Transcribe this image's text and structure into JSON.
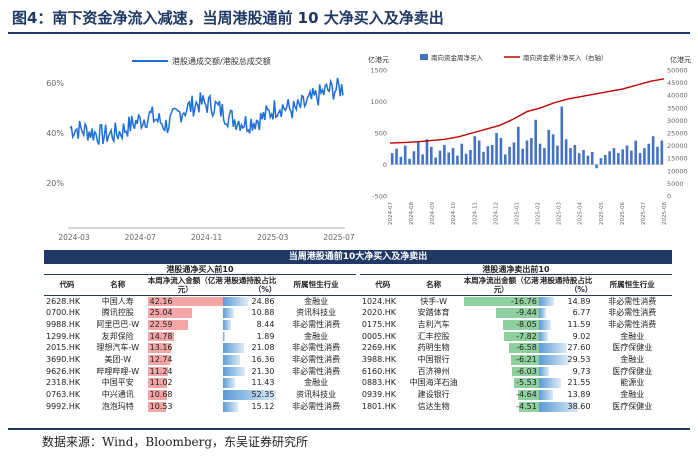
{
  "figure_title": "图4：南下资金净流入减速，当周港股通前 10 大净买入及净卖出",
  "source": "数据来源：Wind，Bloomberg，东吴证券研究所",
  "colors": {
    "navy": "#1f3864",
    "blue_line": "#1f6fd6",
    "bar_blue": "#4472c4",
    "red_line": "#c00000",
    "buy_bar": "#f4a6a6",
    "sell_bar": "#8fd19e",
    "hold_bar": "#5b9bd5"
  },
  "chart_data": [
    {
      "type": "line",
      "legend": [
        "港股通成交额/港股总成交额"
      ],
      "legend_position": "top",
      "x_ticks": [
        "2024-03",
        "2024-07",
        "2024-11",
        "2025-03",
        "2025-07"
      ],
      "y_ticks": [
        "20%",
        "40%",
        "60%"
      ],
      "ylim": [
        0.02,
        0.66
      ],
      "grid": "none",
      "series": [
        {
          "name": "港股通成交额/港股总成交额",
          "x": [
            "2024-03",
            "2024-04",
            "2024-05",
            "2024-06",
            "2024-07",
            "2024-08",
            "2024-09",
            "2024-10",
            "2024-11",
            "2024-12",
            "2025-01",
            "2025-02",
            "2025-03",
            "2025-04",
            "2025-05",
            "2025-06",
            "2025-07",
            "2025-08"
          ],
          "values": [
            0.42,
            0.41,
            0.39,
            0.4,
            0.44,
            0.47,
            0.43,
            0.49,
            0.52,
            0.51,
            0.46,
            0.44,
            0.46,
            0.51,
            0.49,
            0.53,
            0.57,
            0.58
          ]
        }
      ]
    },
    {
      "type": "bar",
      "legend": [
        "南向资金周净买入",
        "南向资金累计净买入（右轴）"
      ],
      "legend_position": "top",
      "left_axis_title": "亿港元",
      "right_axis_title": "亿港元",
      "left_ticks": [
        "-500",
        "0",
        "500",
        "1000",
        "1500"
      ],
      "right_ticks": [
        "0",
        "5000",
        "10000",
        "15000",
        "20000",
        "25000",
        "30000",
        "35000",
        "40000",
        "45000",
        "50000"
      ],
      "ylim_left": [
        -500,
        1500
      ],
      "ylim_right": [
        0,
        50000
      ],
      "x_ticks": [
        "2024-07",
        "2024-08",
        "2024-09",
        "2024-10",
        "2024-11",
        "2024-12",
        "2025-01",
        "2025-02",
        "2025-03",
        "2025-04",
        "2025-05",
        "2025-06",
        "2025-07",
        "2025-08"
      ],
      "series": [
        {
          "name": "南向资金周净买入",
          "values": [
            180,
            250,
            120,
            300,
            90,
            210,
            350,
            160,
            400,
            280,
            110,
            220,
            310,
            190,
            260,
            140,
            330,
            170,
            230,
            450,
            380,
            200,
            290,
            310,
            500,
            420,
            160,
            280,
            350,
            600,
            250,
            380,
            420,
            710,
            330,
            260,
            550,
            480,
            300,
            920,
            400,
            260,
            310,
            180,
            230,
            140,
            200,
            -60,
            100,
            150,
            210,
            260,
            180,
            240,
            300,
            220,
            380,
            180,
            260,
            330,
            450,
            280,
            380
          ]
        },
        {
          "name": "南向资金累计净买入（右轴）",
          "values": [
            21000,
            21200,
            21500,
            22000,
            22500,
            23500,
            25000,
            26500,
            28000,
            30500,
            33500,
            35000,
            37000,
            38500,
            39500,
            40500,
            41500,
            42500,
            44000,
            45500,
            46500
          ]
        }
      ]
    }
  ],
  "table": {
    "title": "当周港股通前10大净买入及净卖出",
    "buy_header": "港股通净买入前10",
    "sell_header": "港股通净卖出前10",
    "columns_buy": [
      "代码",
      "名称",
      "本周净流入金额（亿港元）",
      "港股通持股占比（%）",
      "所属恒生行业"
    ],
    "columns_sell": [
      "代码",
      "名称",
      "本周净流出金额（亿港元）",
      "港股通持股占比（%）",
      "所属恒生行业"
    ],
    "buy_rows": [
      {
        "code": "2628.HK",
        "name": "中国人寿",
        "amount": "42.16",
        "hold": "24.86",
        "industry": "金融业"
      },
      {
        "code": "0700.HK",
        "name": "腾讯控股",
        "amount": "25.04",
        "hold": "10.88",
        "industry": "资讯科技业"
      },
      {
        "code": "9988.HK",
        "name": "阿里巴巴-W",
        "amount": "22.59",
        "hold": "8.44",
        "industry": "非必需性消费"
      },
      {
        "code": "1299.HK",
        "name": "友邦保险",
        "amount": "14.78",
        "hold": "1.89",
        "industry": "金融业"
      },
      {
        "code": "2015.HK",
        "name": "理想汽车-W",
        "amount": "13.16",
        "hold": "21.08",
        "industry": "非必需性消费"
      },
      {
        "code": "3690.HK",
        "name": "美团-W",
        "amount": "12.74",
        "hold": "16.36",
        "industry": "非必需性消费"
      },
      {
        "code": "9626.HK",
        "name": "哔哩哔哩-W",
        "amount": "11.24",
        "hold": "21.30",
        "industry": "非必需性消费"
      },
      {
        "code": "2318.HK",
        "name": "中国平安",
        "amount": "11.02",
        "hold": "11.43",
        "industry": "金融业"
      },
      {
        "code": "0763.HK",
        "name": "中兴通讯",
        "amount": "10.68",
        "hold": "52.35",
        "industry": "资讯科技业"
      },
      {
        "code": "9992.HK",
        "name": "泡泡玛特",
        "amount": "10.53",
        "hold": "15.12",
        "industry": "非必需性消费"
      }
    ],
    "sell_rows": [
      {
        "code": "1024.HK",
        "name": "快手-W",
        "amount": "-16.76",
        "hold": "14.89",
        "industry": "非必需性消费"
      },
      {
        "code": "2020.HK",
        "name": "安踏体育",
        "amount": "-9.44",
        "hold": "6.77",
        "industry": "非必需性消费"
      },
      {
        "code": "0175.HK",
        "name": "吉利汽车",
        "amount": "-8.05",
        "hold": "11.59",
        "industry": "非必需性消费"
      },
      {
        "code": "0005.HK",
        "name": "汇丰控股",
        "amount": "-7.82",
        "hold": "9.02",
        "industry": "金融业"
      },
      {
        "code": "2269.HK",
        "name": "药明生物",
        "amount": "-6.58",
        "hold": "27.60",
        "industry": "医疗保健业"
      },
      {
        "code": "3988.HK",
        "name": "中国银行",
        "amount": "-6.21",
        "hold": "29.53",
        "industry": "金融业"
      },
      {
        "code": "6160.HK",
        "name": "百济神州",
        "amount": "-6.03",
        "hold": "9.73",
        "industry": "医疗保健业"
      },
      {
        "code": "0883.HK",
        "name": "中国海洋石油",
        "amount": "-5.53",
        "hold": "21.55",
        "industry": "能源业"
      },
      {
        "code": "0939.HK",
        "name": "建设银行",
        "amount": "-4.64",
        "hold": "13.89",
        "industry": "金融业"
      },
      {
        "code": "1801.HK",
        "name": "信达生物",
        "amount": "-4.51",
        "hold": "38.60",
        "industry": "医疗保健业"
      }
    ]
  }
}
